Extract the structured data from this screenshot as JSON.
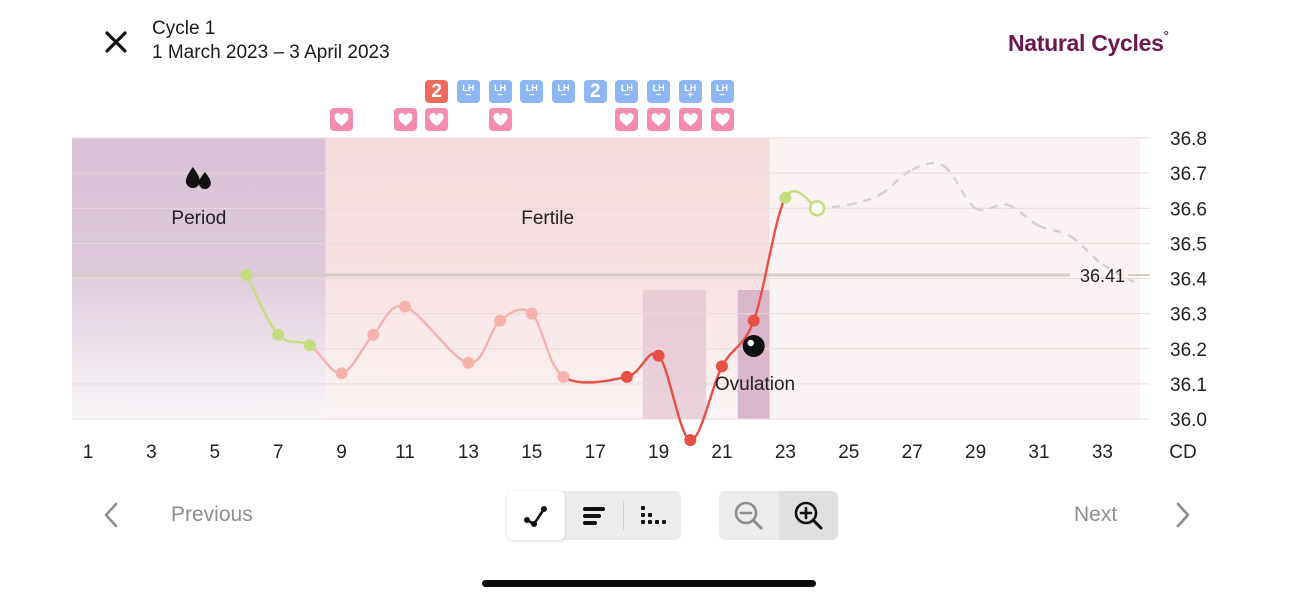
{
  "header": {
    "close_icon": "close-icon",
    "cycle_title": "Cycle 1",
    "cycle_dates": "1 March 2023 – 3 April 2023",
    "brand_name": "Natural Cycles",
    "brand_mark": "°",
    "brand_color": "#6b1750"
  },
  "markers": {
    "top_row": [
      {
        "day": 12,
        "type": "number",
        "text": "2",
        "color": "#ee6b5e"
      },
      {
        "day": 13,
        "type": "lh",
        "text": "LH",
        "sign": "−"
      },
      {
        "day": 14,
        "type": "lh",
        "text": "LH",
        "sign": "−"
      },
      {
        "day": 15,
        "type": "lh",
        "text": "LH",
        "sign": "−"
      },
      {
        "day": 16,
        "type": "lh",
        "text": "LH",
        "sign": "−"
      },
      {
        "day": 17,
        "type": "number",
        "text": "2",
        "color": "#8db6f2"
      },
      {
        "day": 18,
        "type": "lh",
        "text": "LH",
        "sign": "−"
      },
      {
        "day": 19,
        "type": "lh",
        "text": "LH",
        "sign": "−"
      },
      {
        "day": 20,
        "type": "lh",
        "text": "LH",
        "sign": "+"
      },
      {
        "day": 21,
        "type": "lh",
        "text": "LH",
        "sign": "−"
      }
    ],
    "heart_days": [
      9,
      11,
      12,
      14,
      18,
      19,
      20,
      21
    ],
    "heart_icon": "heart-icon"
  },
  "chart_data": {
    "type": "line",
    "y_unit": "°C",
    "ylim": [
      36.0,
      36.8
    ],
    "y_ticks": [
      "36.8",
      "36.7",
      "36.6",
      "36.5",
      "36.4",
      "36.3",
      "36.2",
      "36.1",
      "36.0"
    ],
    "x_ticks": [
      "1",
      "3",
      "5",
      "7",
      "9",
      "11",
      "13",
      "15",
      "17",
      "19",
      "21",
      "23",
      "25",
      "27",
      "29",
      "31",
      "33",
      "CD"
    ],
    "x_range": [
      1,
      34
    ],
    "phases": [
      {
        "label": "Period",
        "from": 1,
        "to": 8.5,
        "color": "#d8c3d6",
        "icon": "drops-icon"
      },
      {
        "label": "Fertile",
        "from": 8.5,
        "to": 22.5,
        "color": "#f5dfe0"
      },
      {
        "label": "",
        "from": 22.5,
        "to": 34,
        "color": "#fbf3f3"
      }
    ],
    "ovulation": {
      "label": "Ovulation",
      "day": 22,
      "icon": "ovulation-icon"
    },
    "coverline": {
      "value": 36.41,
      "label": "36.41"
    },
    "series": [
      {
        "points": [
          {
            "day": 6,
            "temp": 36.41,
            "color": "#c4dd7d"
          },
          {
            "day": 7,
            "temp": 36.24,
            "color": "#c4dd7d"
          },
          {
            "day": 8,
            "temp": 36.21,
            "color": "#c4dd7d"
          },
          {
            "day": 9,
            "temp": 36.13,
            "color": "#f6b3ab"
          },
          {
            "day": 10,
            "temp": 36.24,
            "color": "#f6b3ab"
          },
          {
            "day": 11,
            "temp": 36.32,
            "color": "#f6b3ab"
          },
          {
            "day": 13,
            "temp": 36.16,
            "color": "#f6b3ab"
          },
          {
            "day": 14,
            "temp": 36.28,
            "color": "#f6b3ab"
          },
          {
            "day": 15,
            "temp": 36.3,
            "color": "#f6b3ab"
          },
          {
            "day": 16,
            "temp": 36.12,
            "color": "#f6b3ab"
          },
          {
            "day": 18,
            "temp": 36.12,
            "color": "#e84f45"
          },
          {
            "day": 19,
            "temp": 36.18,
            "color": "#e84f45"
          },
          {
            "day": 20,
            "temp": 35.94,
            "color": "#e84f45"
          },
          {
            "day": 21,
            "temp": 36.15,
            "color": "#e84f45"
          },
          {
            "day": 22,
            "temp": 36.28,
            "color": "#e84f45"
          },
          {
            "day": 23,
            "temp": 36.63,
            "color": "#c4dd7d"
          },
          {
            "day": 24,
            "temp": 36.6,
            "color": "#c4dd7d",
            "hollow": true
          }
        ]
      },
      {
        "prediction": true,
        "points": [
          {
            "day": 24,
            "temp": 36.6
          },
          {
            "day": 25,
            "temp": 36.61
          },
          {
            "day": 26,
            "temp": 36.64
          },
          {
            "day": 27,
            "temp": 36.71
          },
          {
            "day": 28,
            "temp": 36.72
          },
          {
            "day": 29,
            "temp": 36.6
          },
          {
            "day": 30,
            "temp": 36.61
          },
          {
            "day": 31,
            "temp": 36.55
          },
          {
            "day": 32,
            "temp": 36.52
          },
          {
            "day": 33,
            "temp": 36.44
          },
          {
            "day": 34,
            "temp": 36.39
          }
        ]
      }
    ]
  },
  "footer": {
    "previous_label": "Previous",
    "next_label": "Next",
    "view_modes": [
      {
        "name": "graph-view",
        "icon": "line-graph-icon",
        "active": true
      },
      {
        "name": "list-view",
        "icon": "bars-icon",
        "active": false
      },
      {
        "name": "grid-view",
        "icon": "dots-grid-icon",
        "active": false
      }
    ],
    "zoom": [
      {
        "name": "zoom-out",
        "icon": "zoom-out-icon",
        "active": false
      },
      {
        "name": "zoom-in",
        "icon": "zoom-in-icon",
        "active": true
      }
    ]
  }
}
